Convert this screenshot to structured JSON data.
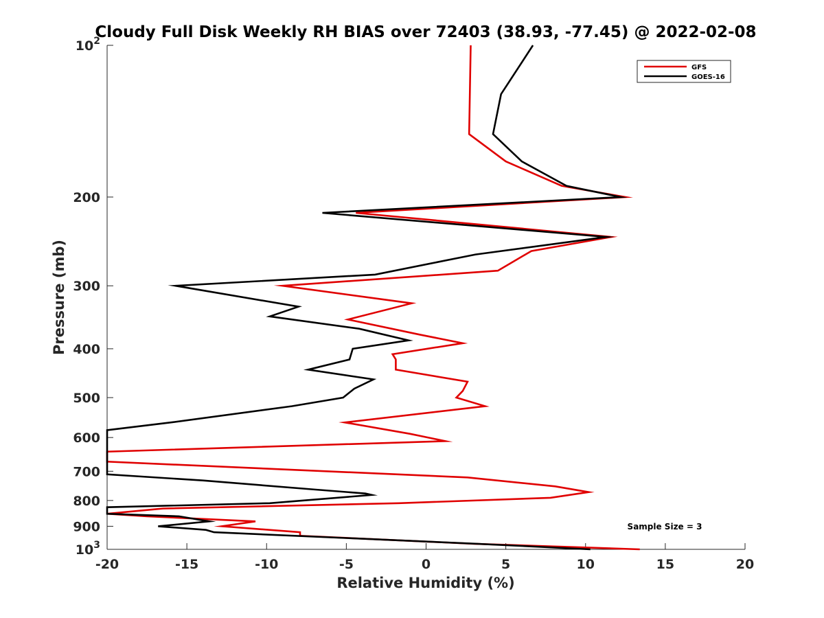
{
  "chart_data": {
    "type": "line",
    "title": "Cloudy Full Disk Weekly RH BIAS over 72403 (38.93, -77.45) @ 2022-02-08",
    "xlabel": "Relative Humidity (%)",
    "ylabel": "Pressure (mb)",
    "xlim": [
      -20,
      20
    ],
    "ylim": [
      100,
      1000
    ],
    "y_scale": "log",
    "y_reversed": true,
    "grid": false,
    "legend_position": "top-right",
    "x_ticks": [
      {
        "value": -20,
        "label": "-20"
      },
      {
        "value": -15,
        "label": "-15"
      },
      {
        "value": -10,
        "label": "-10"
      },
      {
        "value": -5,
        "label": "-5"
      },
      {
        "value": 0,
        "label": "0"
      },
      {
        "value": 5,
        "label": "5"
      },
      {
        "value": 10,
        "label": "10"
      },
      {
        "value": 15,
        "label": "15"
      },
      {
        "value": 20,
        "label": "20"
      }
    ],
    "y_ticks": [
      {
        "value": 100,
        "label": "10",
        "sup": "2"
      },
      {
        "value": 200,
        "label": "200"
      },
      {
        "value": 300,
        "label": "300"
      },
      {
        "value": 400,
        "label": "400"
      },
      {
        "value": 500,
        "label": "500"
      },
      {
        "value": 600,
        "label": "600"
      },
      {
        "value": 700,
        "label": "700"
      },
      {
        "value": 800,
        "label": "800"
      },
      {
        "value": 900,
        "label": "900"
      },
      {
        "value": 1000,
        "label": "10",
        "sup": "3"
      }
    ],
    "series": [
      {
        "name": "GFS",
        "color": "#e00000",
        "points": [
          [
            2.8,
            100
          ],
          [
            2.7,
            150
          ],
          [
            5.0,
            170
          ],
          [
            8.5,
            190
          ],
          [
            12.5,
            200
          ],
          [
            -4.4,
            215
          ],
          [
            11.6,
            240
          ],
          [
            6.6,
            256
          ],
          [
            4.5,
            280
          ],
          [
            -9.0,
            300
          ],
          [
            -0.9,
            325
          ],
          [
            -4.9,
            350
          ],
          [
            -0.4,
            375
          ],
          [
            2.3,
            390
          ],
          [
            -2.1,
            410
          ],
          [
            -1.9,
            420
          ],
          [
            -1.9,
            440
          ],
          [
            2.6,
            465
          ],
          [
            2.3,
            485
          ],
          [
            1.9,
            500
          ],
          [
            3.7,
            520
          ],
          [
            -5.1,
            560
          ],
          [
            -1.0,
            590
          ],
          [
            1.2,
            610
          ],
          [
            -20.0,
            640
          ],
          [
            -20.0,
            670
          ],
          [
            2.6,
            720
          ],
          [
            8.1,
            750
          ],
          [
            10.2,
            770
          ],
          [
            7.8,
            790
          ],
          [
            -1.7,
            810
          ],
          [
            -16.5,
            830
          ],
          [
            -20.0,
            850
          ],
          [
            -17.5,
            860
          ],
          [
            -10.7,
            880
          ],
          [
            -12.8,
            900
          ],
          [
            -7.9,
            925
          ],
          [
            -7.9,
            940
          ],
          [
            3.0,
            975
          ],
          [
            13.4,
            1000
          ]
        ]
      },
      {
        "name": "GOES-16",
        "color": "#000000",
        "points": [
          [
            6.7,
            100
          ],
          [
            4.7,
            125
          ],
          [
            4.2,
            150
          ],
          [
            6.0,
            170
          ],
          [
            8.8,
            190
          ],
          [
            12.2,
            200
          ],
          [
            -6.5,
            215
          ],
          [
            11.3,
            240
          ],
          [
            3.1,
            260
          ],
          [
            -3.2,
            285
          ],
          [
            -15.7,
            300
          ],
          [
            -8.0,
            330
          ],
          [
            -9.8,
            345
          ],
          [
            -4.2,
            365
          ],
          [
            -1.1,
            385
          ],
          [
            -4.6,
            400
          ],
          [
            -4.8,
            420
          ],
          [
            -7.4,
            440
          ],
          [
            -3.3,
            460
          ],
          [
            -4.5,
            480
          ],
          [
            -5.2,
            500
          ],
          [
            -8.4,
            520
          ],
          [
            -16.0,
            560
          ],
          [
            -20.0,
            580
          ],
          [
            -20.0,
            710
          ],
          [
            -14.0,
            730
          ],
          [
            -7.2,
            760
          ],
          [
            -3.8,
            775
          ],
          [
            -3.4,
            780
          ],
          [
            -9.8,
            810
          ],
          [
            -20.0,
            825
          ],
          [
            -20.0,
            850
          ],
          [
            -15.5,
            860
          ],
          [
            -13.6,
            880
          ],
          [
            -16.8,
            900
          ],
          [
            -13.8,
            915
          ],
          [
            -13.3,
            925
          ],
          [
            3.2,
            975
          ],
          [
            10.3,
            1000
          ]
        ]
      }
    ],
    "annotations": [
      {
        "text": "Sample Size = 3"
      }
    ]
  }
}
